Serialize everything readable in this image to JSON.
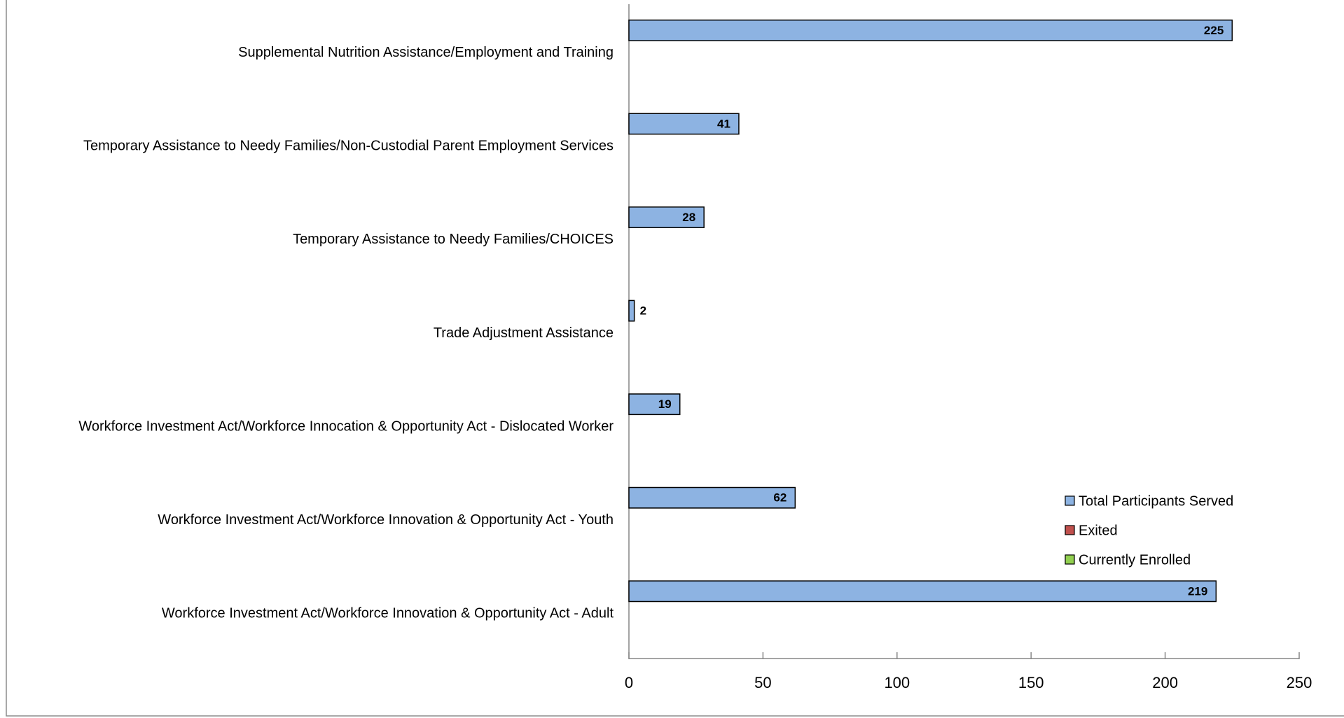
{
  "chart_data": {
    "type": "bar",
    "orientation": "horizontal",
    "categories": [
      "Supplemental Nutrition Assistance/Employment and Training",
      "Temporary Assistance to Needy Families/Non-Custodial Parent Employment Services",
      "Temporary Assistance to Needy Families/CHOICES",
      "Trade Adjustment Assistance",
      "Workforce Investment Act/Workforce Innocation & Opportunity Act - Dislocated Worker",
      "Workforce Investment Act/Workforce Innovation & Opportunity Act - Youth",
      "Workforce Investment Act/Workforce Innovation & Opportunity Act - Adult"
    ],
    "series": [
      {
        "name": "Total Participants Served",
        "color": "#8db3e2",
        "values": [
          225,
          41,
          28,
          2,
          19,
          62,
          219
        ]
      },
      {
        "name": "Exited",
        "color": "#c0504d",
        "values": [
          null,
          null,
          null,
          null,
          null,
          null,
          null
        ]
      },
      {
        "name": "Currently Enrolled",
        "color": "#92d050",
        "values": [
          null,
          null,
          null,
          null,
          null,
          null,
          null
        ]
      }
    ],
    "xlim": [
      0,
      250
    ],
    "xticks": [
      0,
      50,
      100,
      150,
      200,
      250
    ],
    "legend": "lower right"
  }
}
